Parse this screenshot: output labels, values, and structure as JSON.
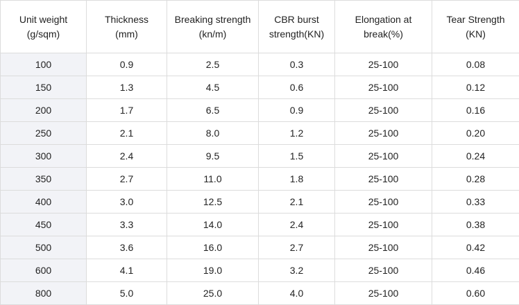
{
  "table": {
    "headers": [
      [
        "Unit weight",
        "(g/sqm)"
      ],
      [
        "Thickness",
        "(mm)"
      ],
      [
        "Breaking strength",
        "(kn/m)"
      ],
      [
        "CBR burst",
        "strength(KN)"
      ],
      [
        "Elongation at",
        "break(%)"
      ],
      [
        "Tear Strength",
        "(KN)"
      ]
    ],
    "rows": [
      [
        "100",
        "0.9",
        "2.5",
        "0.3",
        "25-100",
        "0.08"
      ],
      [
        "150",
        "1.3",
        "4.5",
        "0.6",
        "25-100",
        "0.12"
      ],
      [
        "200",
        "1.7",
        "6.5",
        "0.9",
        "25-100",
        "0.16"
      ],
      [
        "250",
        "2.1",
        "8.0",
        "1.2",
        "25-100",
        "0.20"
      ],
      [
        "300",
        "2.4",
        "9.5",
        "1.5",
        "25-100",
        "0.24"
      ],
      [
        "350",
        "2.7",
        "11.0",
        "1.8",
        "25-100",
        "0.28"
      ],
      [
        "400",
        "3.0",
        "12.5",
        "2.1",
        "25-100",
        "0.33"
      ],
      [
        "450",
        "3.3",
        "14.0",
        "2.4",
        "25-100",
        "0.38"
      ],
      [
        "500",
        "3.6",
        "16.0",
        "2.7",
        "25-100",
        "0.42"
      ],
      [
        "600",
        "4.1",
        "19.0",
        "3.2",
        "25-100",
        "0.46"
      ],
      [
        "800",
        "5.0",
        "25.0",
        "4.0",
        "25-100",
        "0.60"
      ]
    ]
  }
}
